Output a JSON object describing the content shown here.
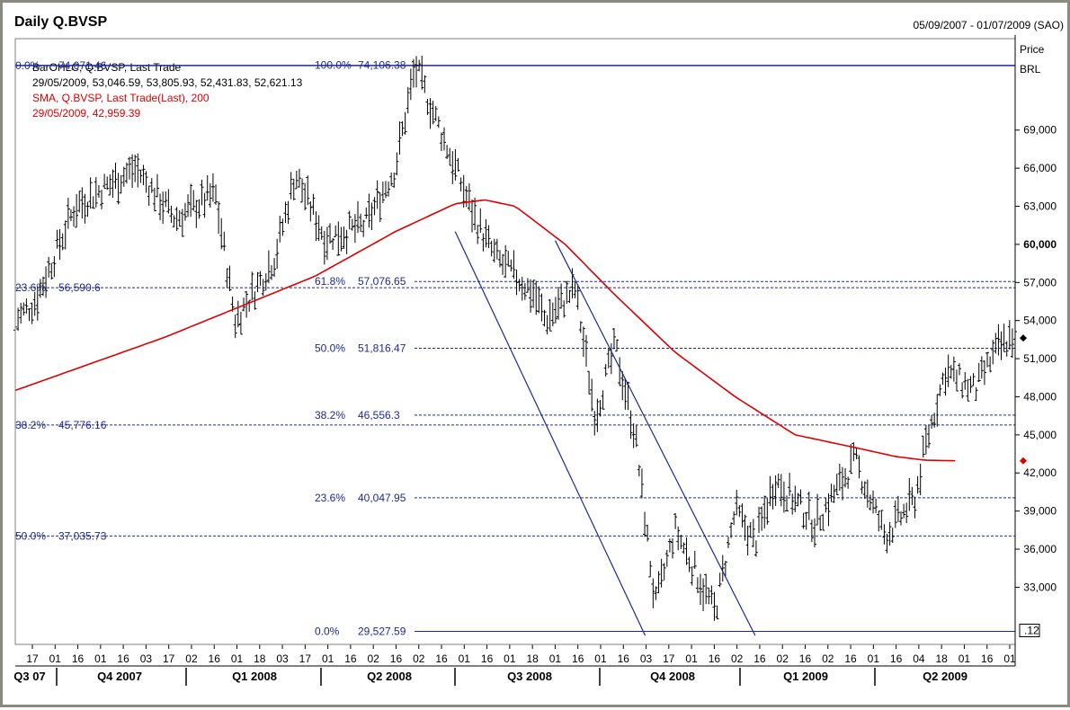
{
  "chart_data": {
    "type": "ohlc",
    "title": "Daily Q.BVSP",
    "date_range": "05/09/2007 - 01/07/2009 (SAO)",
    "ylabel": [
      "Price",
      "BRL"
    ],
    "ylim": [
      28500,
      76200
    ],
    "y_ticks": [
      "69,000",
      "66,000",
      "63,000",
      "60,000",
      "57,000",
      "54,000",
      "51,000",
      "48,000",
      "45,000",
      "42,000",
      "39,000",
      "36,000",
      "33,000"
    ],
    "y_tick_values": [
      69000,
      66000,
      63000,
      60000,
      57000,
      54000,
      51000,
      48000,
      45000,
      42000,
      39000,
      36000,
      33000
    ],
    "y_bold_tick": "60,000",
    "x_ticks": [
      "17",
      "01",
      "16",
      "01",
      "16",
      "03",
      "17",
      "02",
      "16",
      "01",
      "18",
      "03",
      "17",
      "01",
      "16",
      "02",
      "16",
      "02",
      "16",
      "01",
      "16",
      "01",
      "18",
      "01",
      "16",
      "01",
      "16",
      "03",
      "17",
      "01",
      "16",
      "02",
      "16",
      "02",
      "16",
      "02",
      "16",
      "01",
      "16",
      "04",
      "18",
      "01",
      "16",
      "01"
    ],
    "quarters": [
      "Q3 07",
      "Q4 2007",
      "Q1 2008",
      "Q2 2008",
      "Q3 2008",
      "Q4 2008",
      "Q1 2009",
      "Q2 2009"
    ],
    "legend": [
      {
        "text": "BarOHLC, Q.BVSP, Last Trade",
        "color": "#000000"
      },
      {
        "text": "29/05/2009, 53,046.59, 53,805.93, 52,431.83, 52,621.13",
        "color": "#000000"
      },
      {
        "text": "SMA, Q.BVSP, Last Trade(Last),  200",
        "color": "#dd0000"
      },
      {
        "text": "29/05/2009, 42,959.39",
        "color": "#dd0000"
      }
    ],
    "last_bar": {
      "date": "29/05/2009",
      "open": 53046.59,
      "high": 53805.93,
      "low": 52431.83,
      "close": 52621.13
    },
    "sma_last": 42959.39,
    "right_axis_tag": ".12",
    "series": [
      {
        "name": "BarOHLC, Q.BVSP, Last Trade",
        "color": "#000000",
        "anchors_t": [
          0,
          0.02,
          0.06,
          0.09,
          0.12,
          0.16,
          0.2,
          0.22,
          0.26,
          0.28,
          0.31,
          0.35,
          0.38,
          0.4,
          0.44,
          0.46,
          0.48,
          0.52,
          0.53,
          0.56,
          0.58,
          0.6,
          0.62,
          0.64,
          0.66,
          0.7,
          0.72,
          0.74,
          0.76,
          0.8,
          0.84,
          0.87,
          0.9,
          0.91,
          0.93,
          0.96,
          0.98,
          1.0
        ],
        "anchors_v": [
          54000,
          55500,
          63000,
          64500,
          66000,
          62000,
          64000,
          54000,
          59000,
          65500,
          60500,
          61500,
          66000,
          74000,
          66000,
          62000,
          59000,
          56000,
          54000,
          56500,
          46500,
          52000,
          45000,
          31500,
          37500,
          31000,
          39000,
          36500,
          41500,
          38000,
          43000,
          37000,
          40000,
          44000,
          50000,
          48500,
          51500,
          53000
        ]
      },
      {
        "name": "SMA, Q.BVSP, Last Trade(Last),  200",
        "color": "#dd0000",
        "anchors_t": [
          0,
          0.15,
          0.3,
          0.38,
          0.44,
          0.47,
          0.5,
          0.55,
          0.6,
          0.66,
          0.72,
          0.78,
          0.84,
          0.88,
          0.91,
          0.94
        ],
        "anchors_v": [
          48500,
          52700,
          57500,
          61000,
          63200,
          63500,
          63000,
          60000,
          56000,
          51500,
          48000,
          45000,
          44000,
          43300,
          43000,
          42959.39
        ]
      }
    ],
    "fibonacci": [
      {
        "pct": "0.0%",
        "value": "29,527.59",
        "price": 29527.59,
        "side": "right"
      },
      {
        "pct": "23.6%",
        "value": "40,047.95",
        "price": 40047.95,
        "side": "right"
      },
      {
        "pct": "38.2%",
        "value": "46,556.3",
        "price": 46556.3,
        "side": "right"
      },
      {
        "pct": "50.0%",
        "value": "51,816.47",
        "price": 51816.47,
        "side": "right"
      },
      {
        "pct": "61.8%",
        "value": "57,076.65",
        "price": 57076.65,
        "side": "right"
      },
      {
        "pct": "100.0%",
        "value": "74,106.38",
        "price": 74106.38,
        "side": "right"
      },
      {
        "pct": "0.0%",
        "value": "74,071.46",
        "price": 74071.46,
        "side": "left"
      },
      {
        "pct": "23.6%",
        "value": "56,590.6",
        "price": 56590.6,
        "side": "left"
      },
      {
        "pct": "38.2%",
        "value": "45,776.16",
        "price": 45776.16,
        "side": "left"
      },
      {
        "pct": "50.0%",
        "value": "37,035.73",
        "price": 37035.73,
        "side": "left"
      }
    ],
    "channel_lines": [
      {
        "from": [
          0.44,
          61000
        ],
        "to": [
          0.63,
          29200
        ]
      },
      {
        "from": [
          0.54,
          60300
        ],
        "to": [
          0.74,
          29200
        ]
      }
    ],
    "markers": [
      {
        "price": 52621.13,
        "color": "#000000"
      },
      {
        "price": 42959.39,
        "color": "#dd0000"
      }
    ]
  }
}
